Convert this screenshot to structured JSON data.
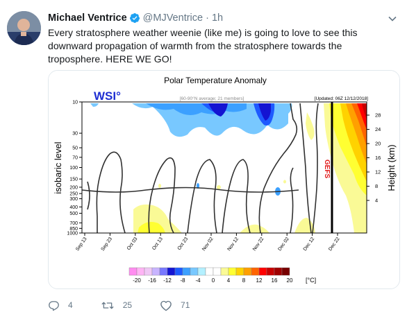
{
  "tweet": {
    "display_name": "Michael Ventrice",
    "handle": "@MJVentrice",
    "separator": "·",
    "time": "1h",
    "text": "Every stratosphere weather weenie (like me) is going to love to see this downward propagation of warmth from the stratosphere towards the troposphere. HERE WE GO!",
    "accent_color": "#1da1f2"
  },
  "chart_data": {
    "type": "heatmap",
    "title": "Polar Temperature Anomaly",
    "subtitle": "[60-90°N average; 21 members]",
    "updated": "[Updated: 06Z 12/12/2018]",
    "logo": "WSI°",
    "vertical_marker_label": "GEFS",
    "ylabel": "isobaric level",
    "ylabel_right": "Height (km)",
    "y_ticks": [
      "10",
      "30",
      "50",
      "70",
      "100",
      "150",
      "200",
      "250",
      "300",
      "400",
      "500",
      "700",
      "850",
      "1000"
    ],
    "y_right_ticks": [
      "28",
      "24",
      "20",
      "16",
      "12",
      "8",
      "4"
    ],
    "x_ticks": [
      "Sep 13",
      "Sep 23",
      "Oct 03",
      "Oct 13",
      "Oct 23",
      "Nov 02",
      "Nov 12",
      "Nov 22",
      "Dec 02",
      "Dec 12",
      "Dec 22"
    ],
    "colorbar": {
      "labels": [
        "-20",
        "-16",
        "-12",
        "-8",
        "-4",
        "0",
        "4",
        "8",
        "12",
        "16",
        "20"
      ],
      "unit": "[°C]",
      "colors": [
        "#ff8cf0",
        "#ffb4f5",
        "#f0c8f5",
        "#c8b4ff",
        "#7878ff",
        "#1414d2",
        "#1e5aff",
        "#3ca0ff",
        "#78c8ff",
        "#b4f0ff",
        "#ffffff",
        "#ffffff",
        "#fafa96",
        "#ffff32",
        "#ffd200",
        "#ffa000",
        "#ff6400",
        "#ff0000",
        "#c80000",
        "#a00000",
        "#780000"
      ]
    }
  },
  "actions": {
    "reply_count": "4",
    "retweet_count": "25",
    "like_count": "71"
  }
}
